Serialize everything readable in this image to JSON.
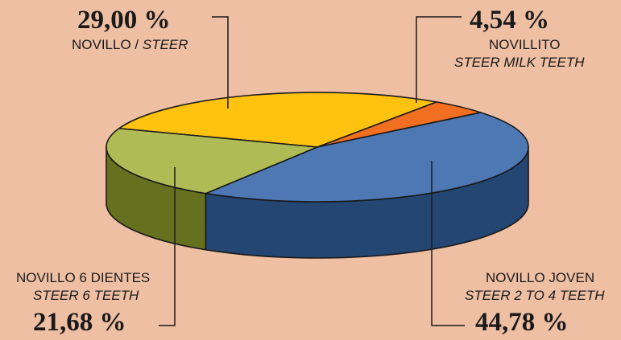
{
  "chart_data": {
    "type": "pie",
    "style": "3d",
    "unit": "%",
    "colors": {
      "background": "#efbfa3",
      "outline": "#1a1a1a"
    },
    "slices": [
      {
        "label": "NOVILLO / STEER",
        "label_es": "NOVILLO",
        "label_en": "STEER",
        "value": 29.0,
        "value_label": "29,00 %",
        "color": "#ffc20e",
        "side_color": "#c79000"
      },
      {
        "label": "NOVILLITO STEER MILK TEETH",
        "label_es": "NOVILLITO",
        "label_en": "STEER MILK TEETH",
        "value": 4.54,
        "value_label": "4,54 %",
        "color": "#f26f21",
        "side_color": "#b84a10"
      },
      {
        "label": "NOVILLO JOVEN STEER 2 TO 4 TEETH",
        "label_es": "NOVILLO JOVEN",
        "label_en": "STEER 2 TO 4 TEETH",
        "value": 44.78,
        "value_label": "44,78 %",
        "color": "#4e78b3",
        "side_color": "#234672"
      },
      {
        "label": "NOVILLO 6 DIENTES STEER 6 TEETH",
        "label_es": "NOVILLO 6 DIENTES",
        "label_en": "STEER 6 TEETH",
        "value": 21.68,
        "value_label": "21,68 %",
        "color": "#afbb55",
        "side_color": "#65711f"
      }
    ]
  }
}
